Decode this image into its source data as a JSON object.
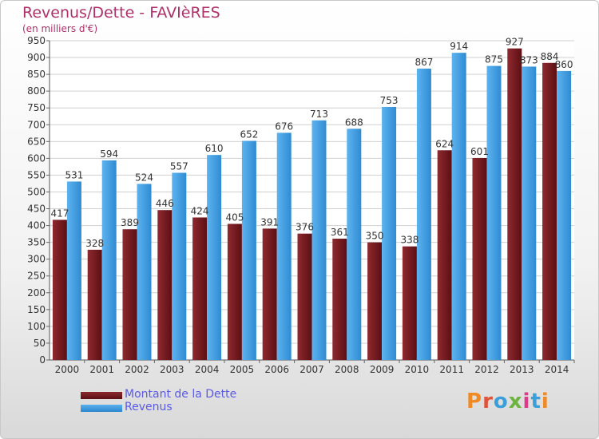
{
  "header": {
    "title": "Revenus/Dette - FAVIèRES",
    "subtitle": "(en milliers d'€)"
  },
  "legend": {
    "items": [
      {
        "label": "Montant de la Dette",
        "color": "#7a1e22"
      },
      {
        "label": "Revenus",
        "color": "#3e9ee6"
      }
    ]
  },
  "logo": {
    "text": "Proxiti",
    "colors": [
      "#f08a24",
      "#e0533a",
      "#3aa0dc",
      "#6cb33f",
      "#e03a8a",
      "#3aa0dc",
      "#f08a24"
    ]
  },
  "chart_data": {
    "type": "bar",
    "title": "Revenus/Dette - FAVIèRES",
    "subtitle": "(en milliers d'€)",
    "categories": [
      "2000",
      "2001",
      "2002",
      "2003",
      "2004",
      "2005",
      "2006",
      "2007",
      "2008",
      "2009",
      "2010",
      "2011",
      "2012",
      "2013",
      "2014"
    ],
    "series": [
      {
        "name": "Montant de la Dette",
        "color": "#7a1e22",
        "values": [
          417,
          328,
          389,
          446,
          424,
          405,
          391,
          376,
          361,
          350,
          338,
          624,
          601,
          927,
          884
        ]
      },
      {
        "name": "Revenus",
        "color": "#3e9ee6",
        "values": [
          531,
          594,
          524,
          557,
          610,
          652,
          676,
          713,
          688,
          753,
          867,
          914,
          875,
          873,
          860
        ]
      }
    ],
    "ylim": [
      0,
      950
    ],
    "yticks": [
      0,
      50,
      100,
      150,
      200,
      250,
      300,
      350,
      400,
      450,
      500,
      550,
      600,
      650,
      700,
      750,
      800,
      850,
      900,
      950
    ],
    "grid": true,
    "legend_position": "bottom-left"
  }
}
